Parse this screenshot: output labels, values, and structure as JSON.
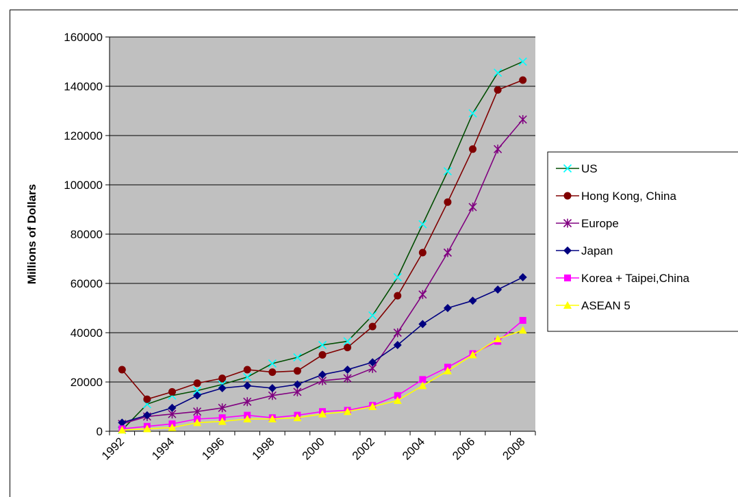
{
  "chart_data": {
    "type": "line",
    "title": "",
    "xlabel": "",
    "ylabel": "Millions of Dollars",
    "ylim": [
      0,
      160000
    ],
    "y_ticks": [
      0,
      20000,
      40000,
      60000,
      80000,
      100000,
      120000,
      140000,
      160000
    ],
    "x": [
      1992,
      1993,
      1994,
      1995,
      1996,
      1997,
      1998,
      1999,
      2000,
      2001,
      2002,
      2003,
      2004,
      2005,
      2006,
      2007,
      2008
    ],
    "x_tick_labels": [
      "1992",
      "1994",
      "1996",
      "1998",
      "2000",
      "2002",
      "2004",
      "2006",
      "2008"
    ],
    "grid": "horizontal",
    "plot_background": "#c0c0c0",
    "legend_position": "right",
    "series": [
      {
        "name": "US",
        "color": "#00ffff",
        "line_color": "#004d00",
        "marker": "x",
        "values": [
          500,
          11000,
          14500,
          16500,
          19000,
          22000,
          27500,
          30000,
          35000,
          36500,
          47000,
          62500,
          84000,
          105500,
          129000,
          145500,
          150000
        ]
      },
      {
        "name": "Hong Kong, China",
        "color": "#800000",
        "line_color": "#800000",
        "marker": "circle",
        "values": [
          25000,
          13000,
          16000,
          19500,
          21500,
          25000,
          24000,
          24500,
          31000,
          34000,
          42500,
          55000,
          72500,
          93000,
          114500,
          138500,
          142500
        ]
      },
      {
        "name": "Europe",
        "color": "#800080",
        "line_color": "#800080",
        "marker": "asterisk",
        "values": [
          3000,
          6000,
          7000,
          8000,
          9500,
          12000,
          14500,
          16000,
          20500,
          21500,
          25500,
          40000,
          55500,
          72500,
          91000,
          114500,
          126500
        ]
      },
      {
        "name": "Japan",
        "color": "#000080",
        "line_color": "#000080",
        "marker": "diamond",
        "values": [
          3500,
          6500,
          9500,
          14500,
          17500,
          18500,
          17500,
          19000,
          23000,
          25000,
          28000,
          35000,
          43500,
          50000,
          53000,
          57500,
          62500
        ]
      },
      {
        "name": "Korea + Taipei,China",
        "color": "#ff00ff",
        "line_color": "#ff00ff",
        "marker": "square",
        "values": [
          1000,
          2000,
          3000,
          5000,
          5500,
          6500,
          5500,
          6500,
          8000,
          8500,
          10500,
          14500,
          21000,
          26000,
          31500,
          36500,
          45000
        ]
      },
      {
        "name": "ASEAN 5",
        "color": "#ffff00",
        "line_color": "#ffff00",
        "marker": "triangle",
        "values": [
          500,
          1000,
          1500,
          3500,
          4000,
          5000,
          5000,
          5500,
          7000,
          8000,
          10000,
          12500,
          18500,
          24500,
          31000,
          37500,
          41000
        ]
      }
    ]
  }
}
